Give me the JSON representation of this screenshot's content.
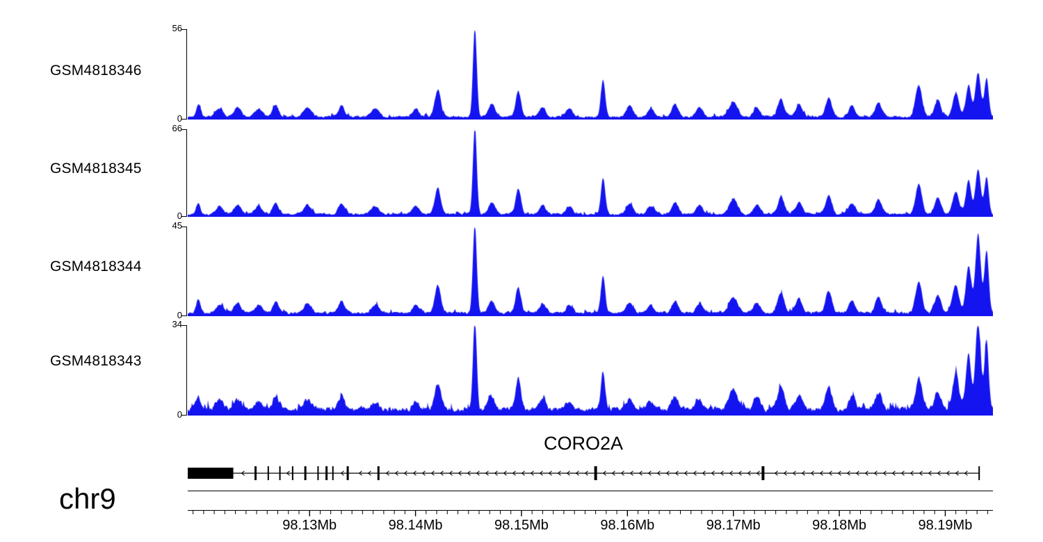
{
  "chart_data": {
    "type": "area",
    "color": "#1414f0",
    "region": {
      "chrom": "chr9",
      "start_mb": 98.1185,
      "end_mb": 98.1945,
      "unit": "Mb"
    },
    "x_axis": {
      "tick_labels": [
        "98.13Mb",
        "98.14Mb",
        "98.15Mb",
        "98.16Mb",
        "98.17Mb",
        "98.18Mb",
        "98.19Mb"
      ],
      "tick_mb": [
        98.13,
        98.14,
        98.15,
        98.16,
        98.17,
        98.18,
        98.19
      ],
      "minor_tick_step_mb": 0.001
    },
    "tracks": [
      {
        "label": "GSM4818346",
        "ymax": 56,
        "ymin": 0,
        "noise": 2.5,
        "seed": 7,
        "peaks": [
          [
            98.1195,
            8,
            0.0002
          ],
          [
            98.1215,
            5,
            0.00032
          ],
          [
            98.1232,
            6,
            0.00032
          ],
          [
            98.1252,
            5,
            0.00035
          ],
          [
            98.1268,
            7,
            0.00028
          ],
          [
            98.1298,
            6,
            0.00035
          ],
          [
            98.133,
            7,
            0.0003
          ],
          [
            98.1362,
            5,
            0.00035
          ],
          [
            98.14,
            5,
            0.0003
          ],
          [
            98.1421,
            17,
            0.00028
          ],
          [
            98.1456,
            56,
            0.00018
          ],
          [
            98.1472,
            8,
            0.0003
          ],
          [
            98.1497,
            16,
            0.00025
          ],
          [
            98.152,
            6,
            0.0003
          ],
          [
            98.1545,
            5,
            0.0003
          ],
          [
            98.1577,
            23,
            0.0002
          ],
          [
            98.1602,
            7,
            0.0003
          ],
          [
            98.1622,
            5,
            0.0003
          ],
          [
            98.1645,
            8,
            0.0003
          ],
          [
            98.1668,
            6,
            0.0003
          ],
          [
            98.17,
            9,
            0.0004
          ],
          [
            98.1722,
            6,
            0.0003
          ],
          [
            98.1745,
            11,
            0.0003
          ],
          [
            98.1762,
            8,
            0.0003
          ],
          [
            98.179,
            12,
            0.0003
          ],
          [
            98.1812,
            7,
            0.0003
          ],
          [
            98.1837,
            9,
            0.0003
          ],
          [
            98.1875,
            20,
            0.0003
          ],
          [
            98.1893,
            10,
            0.0003
          ],
          [
            98.191,
            14,
            0.0003
          ],
          [
            98.1922,
            20,
            0.00025
          ],
          [
            98.1931,
            28,
            0.00025
          ],
          [
            98.1939,
            24,
            0.0002
          ]
        ]
      },
      {
        "label": "GSM4818345",
        "ymax": 66,
        "ymin": 0,
        "noise": 3.0,
        "seed": 13,
        "peaks": [
          [
            98.1195,
            9,
            0.0002
          ],
          [
            98.1215,
            6,
            0.00032
          ],
          [
            98.1232,
            7,
            0.00032
          ],
          [
            98.1252,
            6,
            0.00035
          ],
          [
            98.1268,
            8,
            0.00028
          ],
          [
            98.1298,
            7,
            0.00035
          ],
          [
            98.133,
            8,
            0.0003
          ],
          [
            98.1362,
            6,
            0.00035
          ],
          [
            98.14,
            6,
            0.0003
          ],
          [
            98.1421,
            20,
            0.00028
          ],
          [
            98.1456,
            66,
            0.00018
          ],
          [
            98.1472,
            9,
            0.0003
          ],
          [
            98.1497,
            19,
            0.00025
          ],
          [
            98.152,
            7,
            0.0003
          ],
          [
            98.1545,
            6,
            0.0003
          ],
          [
            98.1577,
            28,
            0.0002
          ],
          [
            98.1602,
            8,
            0.0003
          ],
          [
            98.1622,
            6,
            0.0003
          ],
          [
            98.1645,
            9,
            0.0003
          ],
          [
            98.1668,
            7,
            0.0003
          ],
          [
            98.17,
            11,
            0.0004
          ],
          [
            98.1722,
            7,
            0.0003
          ],
          [
            98.1745,
            13,
            0.0003
          ],
          [
            98.1762,
            9,
            0.0003
          ],
          [
            98.179,
            14,
            0.0003
          ],
          [
            98.1812,
            8,
            0.0003
          ],
          [
            98.1837,
            11,
            0.0003
          ],
          [
            98.1875,
            23,
            0.0003
          ],
          [
            98.1893,
            12,
            0.0003
          ],
          [
            98.191,
            17,
            0.0003
          ],
          [
            98.1922,
            25,
            0.00025
          ],
          [
            98.1931,
            34,
            0.00025
          ],
          [
            98.1939,
            28,
            0.0002
          ]
        ]
      },
      {
        "label": "GSM4818344",
        "ymax": 45,
        "ymin": 0,
        "noise": 2.4,
        "seed": 21,
        "peaks": [
          [
            98.1195,
            7,
            0.0002
          ],
          [
            98.1215,
            4,
            0.00032
          ],
          [
            98.1232,
            5,
            0.00032
          ],
          [
            98.1252,
            4,
            0.00035
          ],
          [
            98.1268,
            6,
            0.00028
          ],
          [
            98.1298,
            5,
            0.00035
          ],
          [
            98.133,
            6,
            0.0003
          ],
          [
            98.1362,
            4,
            0.00035
          ],
          [
            98.14,
            4,
            0.0003
          ],
          [
            98.1421,
            14,
            0.00028
          ],
          [
            98.1456,
            45,
            0.00018
          ],
          [
            98.1472,
            6,
            0.0003
          ],
          [
            98.1497,
            13,
            0.00025
          ],
          [
            98.152,
            5,
            0.0003
          ],
          [
            98.1545,
            4,
            0.0003
          ],
          [
            98.1577,
            19,
            0.0002
          ],
          [
            98.1602,
            5,
            0.0003
          ],
          [
            98.1622,
            4,
            0.0003
          ],
          [
            98.1645,
            6,
            0.0003
          ],
          [
            98.1668,
            5,
            0.0003
          ],
          [
            98.17,
            8,
            0.0004
          ],
          [
            98.1722,
            5,
            0.0003
          ],
          [
            98.1745,
            10,
            0.0003
          ],
          [
            98.1762,
            7,
            0.0003
          ],
          [
            98.179,
            11,
            0.0003
          ],
          [
            98.1812,
            6,
            0.0003
          ],
          [
            98.1837,
            8,
            0.0003
          ],
          [
            98.1875,
            16,
            0.0003
          ],
          [
            98.1893,
            9,
            0.0003
          ],
          [
            98.191,
            14,
            0.0003
          ],
          [
            98.1922,
            24,
            0.00025
          ],
          [
            98.1931,
            40,
            0.00025
          ],
          [
            98.1939,
            32,
            0.0002
          ]
        ]
      },
      {
        "label": "GSM4818343",
        "ymax": 34,
        "ymin": 0,
        "noise": 3.4,
        "seed": 5,
        "peaks": [
          [
            98.1195,
            5,
            0.0002
          ],
          [
            98.1215,
            4,
            0.00032
          ],
          [
            98.1232,
            4,
            0.00032
          ],
          [
            98.1252,
            3,
            0.00035
          ],
          [
            98.1268,
            5,
            0.00028
          ],
          [
            98.1298,
            4,
            0.00035
          ],
          [
            98.133,
            5,
            0.0003
          ],
          [
            98.1362,
            3,
            0.00035
          ],
          [
            98.14,
            3,
            0.0003
          ],
          [
            98.1421,
            10,
            0.00028
          ],
          [
            98.1456,
            34,
            0.00018
          ],
          [
            98.1472,
            5,
            0.0003
          ],
          [
            98.1497,
            12,
            0.00025
          ],
          [
            98.152,
            4,
            0.0003
          ],
          [
            98.1545,
            3,
            0.0003
          ],
          [
            98.1577,
            14,
            0.0002
          ],
          [
            98.1602,
            4,
            0.0003
          ],
          [
            98.1622,
            3,
            0.0003
          ],
          [
            98.1645,
            5,
            0.0003
          ],
          [
            98.1668,
            4,
            0.0003
          ],
          [
            98.17,
            8,
            0.0004
          ],
          [
            98.1722,
            5,
            0.0003
          ],
          [
            98.1745,
            9,
            0.0003
          ],
          [
            98.1762,
            6,
            0.0003
          ],
          [
            98.179,
            8,
            0.0003
          ],
          [
            98.1812,
            5,
            0.0003
          ],
          [
            98.1837,
            6,
            0.0003
          ],
          [
            98.1875,
            12,
            0.0003
          ],
          [
            98.1893,
            7,
            0.0003
          ],
          [
            98.191,
            13,
            0.0003
          ],
          [
            98.1922,
            21,
            0.00025
          ],
          [
            98.1931,
            33,
            0.00025
          ],
          [
            98.1939,
            26,
            0.0002
          ]
        ]
      }
    ],
    "gene_track": {
      "name": "CORO2A",
      "strand": "-",
      "start_mb": 98.1185,
      "end_mb": 98.1932,
      "thick_exon_mb": [
        98.1185,
        98.1228
      ],
      "exons_mb": [
        [
          98.1249,
          3
        ],
        [
          98.1261,
          2
        ],
        [
          98.1272,
          2
        ],
        [
          98.1284,
          2
        ],
        [
          98.1296,
          3
        ],
        [
          98.1308,
          2
        ],
        [
          98.1316,
          3
        ],
        [
          98.1322,
          2
        ],
        [
          98.1336,
          3
        ],
        [
          98.1365,
          3
        ],
        [
          98.157,
          4
        ],
        [
          98.1728,
          4
        ],
        [
          98.1932,
          2
        ]
      ]
    }
  }
}
